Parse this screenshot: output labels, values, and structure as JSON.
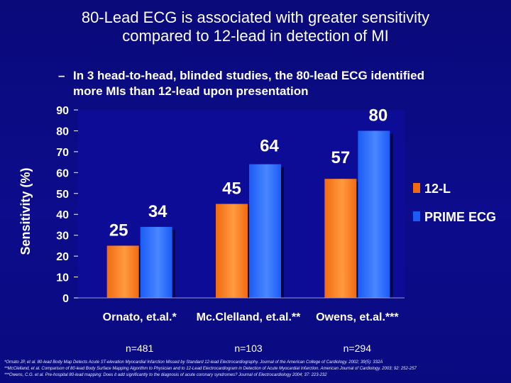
{
  "slide": {
    "title_line1": "80-Lead ECG is associated with greater sensitivity",
    "title_line2": "compared to 12-lead in detection of MI",
    "bullet_dash": "–",
    "bullet_text": "In 3 head-to-head, blinded studies, the 80-lead ECG identified more MIs than 12-lead upon presentation",
    "footnotes": [
      "*Ornato JP, et al. 80-lead Body Map Detects Acute ST-elevation Myocardial Infarction Missed by Standard 12-lead Electrocardiography. Journal of the American College of Cardiology. 2002; 39(5): 332A",
      "**McClelland, et al. Comparison of 80-lead Body Surface Mapping Algorithm to Physician and to 12-Lead Electrocardiogram in Detection of Acute Myocardial Infarction. American Journal of Cardiology. 2003; 92: 252-257",
      "***Owens, C.G. et al. Pre-hospital 80-lead mapping: Does it add significantly to the diagnosis of acute coronary syndromes? Journal of Electrocardiology 2004; 37: 223-232"
    ]
  },
  "chart_data": {
    "type": "bar",
    "categories": [
      "Ornato, et.al.*",
      "Mc.Clelland, et.al.**",
      "Owens, et.al.***"
    ],
    "sample_sizes": [
      "n=481",
      "n=103",
      "n=294"
    ],
    "series": [
      {
        "name": "12-L",
        "values": [
          25,
          45,
          57
        ],
        "color": "#f26a10"
      },
      {
        "name": "PRIME ECG",
        "values": [
          34,
          64,
          80
        ],
        "color": "#1a5cf5"
      }
    ],
    "ylabel": "Sensitivity (%)",
    "ylim": [
      0,
      90
    ],
    "yticks": [
      0,
      10,
      20,
      30,
      40,
      50,
      60,
      70,
      80,
      90
    ],
    "legend_position": "right",
    "plot_background": "#0c0c96",
    "data_label_color": "#ffffff"
  }
}
